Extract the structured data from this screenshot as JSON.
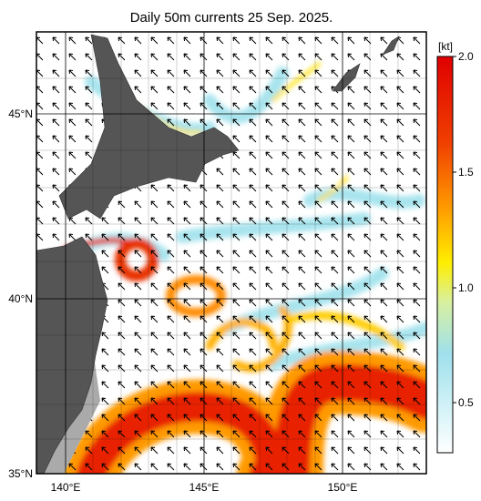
{
  "title": "Daily 50m currents 25 Sep. 2025.",
  "lat_labels": [
    "45°N",
    "40°N",
    "35°N"
  ],
  "lon_labels": [
    "140°E",
    "145°E",
    "150°E"
  ],
  "colorbar": {
    "unit": "[kt]",
    "labels": [
      "2.0",
      "1.5",
      "1.0",
      "0.5"
    ]
  }
}
